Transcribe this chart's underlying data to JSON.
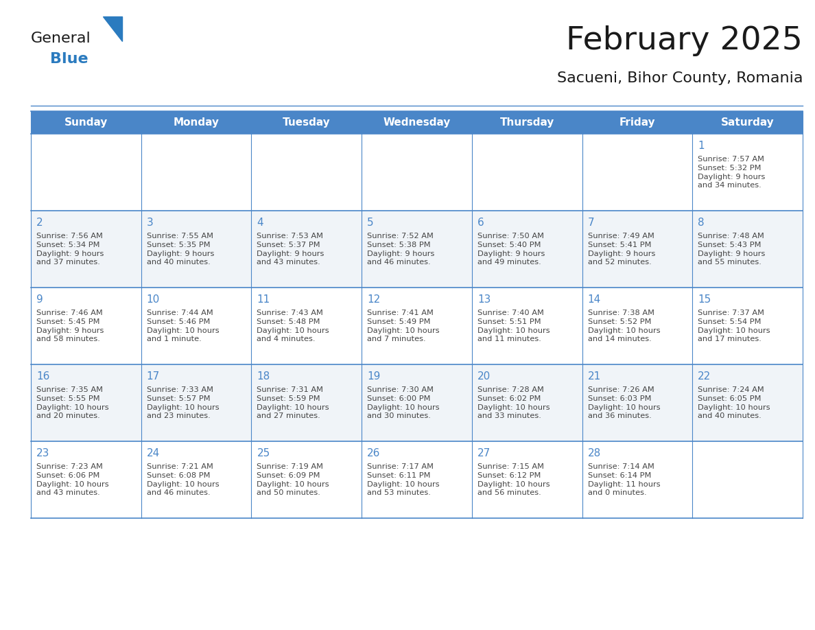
{
  "title": "February 2025",
  "subtitle": "Sacueni, Bihor County, Romania",
  "header_color": "#4a86c8",
  "header_text_color": "#FFFFFF",
  "cell_bg_even": "#FFFFFF",
  "cell_bg_odd": "#f0f4f8",
  "border_color": "#4a86c8",
  "title_color": "#1a1a1a",
  "subtitle_color": "#1a1a1a",
  "day_number_color": "#4a86c8",
  "info_text_color": "#444444",
  "days_of_week": [
    "Sunday",
    "Monday",
    "Tuesday",
    "Wednesday",
    "Thursday",
    "Friday",
    "Saturday"
  ],
  "calendar_data": [
    [
      null,
      null,
      null,
      null,
      null,
      null,
      {
        "day": 1,
        "sunrise": "7:57 AM",
        "sunset": "5:32 PM",
        "daylight": "9 hours\nand 34 minutes."
      }
    ],
    [
      {
        "day": 2,
        "sunrise": "7:56 AM",
        "sunset": "5:34 PM",
        "daylight": "9 hours\nand 37 minutes."
      },
      {
        "day": 3,
        "sunrise": "7:55 AM",
        "sunset": "5:35 PM",
        "daylight": "9 hours\nand 40 minutes."
      },
      {
        "day": 4,
        "sunrise": "7:53 AM",
        "sunset": "5:37 PM",
        "daylight": "9 hours\nand 43 minutes."
      },
      {
        "day": 5,
        "sunrise": "7:52 AM",
        "sunset": "5:38 PM",
        "daylight": "9 hours\nand 46 minutes."
      },
      {
        "day": 6,
        "sunrise": "7:50 AM",
        "sunset": "5:40 PM",
        "daylight": "9 hours\nand 49 minutes."
      },
      {
        "day": 7,
        "sunrise": "7:49 AM",
        "sunset": "5:41 PM",
        "daylight": "9 hours\nand 52 minutes."
      },
      {
        "day": 8,
        "sunrise": "7:48 AM",
        "sunset": "5:43 PM",
        "daylight": "9 hours\nand 55 minutes."
      }
    ],
    [
      {
        "day": 9,
        "sunrise": "7:46 AM",
        "sunset": "5:45 PM",
        "daylight": "9 hours\nand 58 minutes."
      },
      {
        "day": 10,
        "sunrise": "7:44 AM",
        "sunset": "5:46 PM",
        "daylight": "10 hours\nand 1 minute."
      },
      {
        "day": 11,
        "sunrise": "7:43 AM",
        "sunset": "5:48 PM",
        "daylight": "10 hours\nand 4 minutes."
      },
      {
        "day": 12,
        "sunrise": "7:41 AM",
        "sunset": "5:49 PM",
        "daylight": "10 hours\nand 7 minutes."
      },
      {
        "day": 13,
        "sunrise": "7:40 AM",
        "sunset": "5:51 PM",
        "daylight": "10 hours\nand 11 minutes."
      },
      {
        "day": 14,
        "sunrise": "7:38 AM",
        "sunset": "5:52 PM",
        "daylight": "10 hours\nand 14 minutes."
      },
      {
        "day": 15,
        "sunrise": "7:37 AM",
        "sunset": "5:54 PM",
        "daylight": "10 hours\nand 17 minutes."
      }
    ],
    [
      {
        "day": 16,
        "sunrise": "7:35 AM",
        "sunset": "5:55 PM",
        "daylight": "10 hours\nand 20 minutes."
      },
      {
        "day": 17,
        "sunrise": "7:33 AM",
        "sunset": "5:57 PM",
        "daylight": "10 hours\nand 23 minutes."
      },
      {
        "day": 18,
        "sunrise": "7:31 AM",
        "sunset": "5:59 PM",
        "daylight": "10 hours\nand 27 minutes."
      },
      {
        "day": 19,
        "sunrise": "7:30 AM",
        "sunset": "6:00 PM",
        "daylight": "10 hours\nand 30 minutes."
      },
      {
        "day": 20,
        "sunrise": "7:28 AM",
        "sunset": "6:02 PM",
        "daylight": "10 hours\nand 33 minutes."
      },
      {
        "day": 21,
        "sunrise": "7:26 AM",
        "sunset": "6:03 PM",
        "daylight": "10 hours\nand 36 minutes."
      },
      {
        "day": 22,
        "sunrise": "7:24 AM",
        "sunset": "6:05 PM",
        "daylight": "10 hours\nand 40 minutes."
      }
    ],
    [
      {
        "day": 23,
        "sunrise": "7:23 AM",
        "sunset": "6:06 PM",
        "daylight": "10 hours\nand 43 minutes."
      },
      {
        "day": 24,
        "sunrise": "7:21 AM",
        "sunset": "6:08 PM",
        "daylight": "10 hours\nand 46 minutes."
      },
      {
        "day": 25,
        "sunrise": "7:19 AM",
        "sunset": "6:09 PM",
        "daylight": "10 hours\nand 50 minutes."
      },
      {
        "day": 26,
        "sunrise": "7:17 AM",
        "sunset": "6:11 PM",
        "daylight": "10 hours\nand 53 minutes."
      },
      {
        "day": 27,
        "sunrise": "7:15 AM",
        "sunset": "6:12 PM",
        "daylight": "10 hours\nand 56 minutes."
      },
      {
        "day": 28,
        "sunrise": "7:14 AM",
        "sunset": "6:14 PM",
        "daylight": "11 hours\nand 0 minutes."
      },
      null
    ]
  ],
  "logo_general_color": "#1a1a1a",
  "logo_blue_color": "#2b7bbf",
  "fig_width": 11.88,
  "fig_height": 9.18,
  "dpi": 100
}
